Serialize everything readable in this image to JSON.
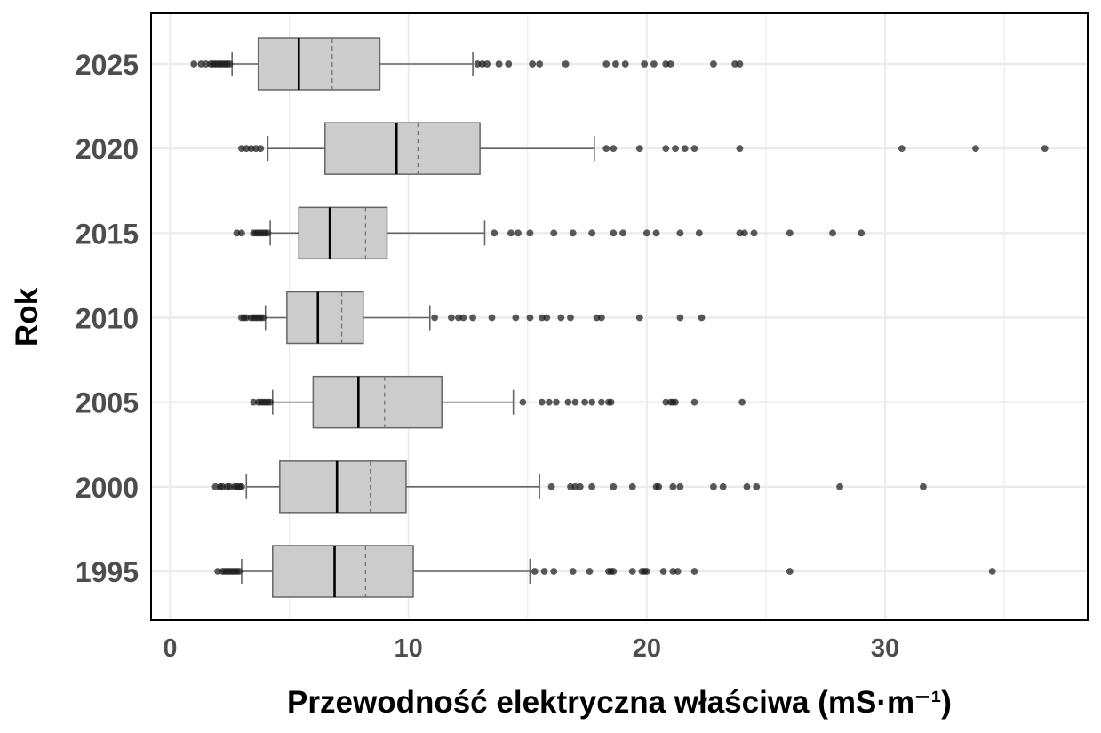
{
  "chart_data": {
    "type": "boxplot",
    "orientation": "horizontal",
    "xlabel": "Przewodność elektryczna właściwa (mS·m⁻¹)",
    "ylabel": "Rok",
    "xlim": [
      -0.8,
      38.5
    ],
    "xticks": [
      0,
      10,
      20,
      30
    ],
    "grid": true,
    "colors": {
      "box_fill": "#cccccc",
      "box_stroke": "#666666",
      "point": "#1a1a1a",
      "grid": "#ebebeb",
      "frame": "#000000"
    },
    "categories": [
      "1995",
      "2000",
      "2005",
      "2010",
      "2015",
      "2020",
      "2025"
    ],
    "series": [
      {
        "category": "1995",
        "whisker_low": 3.0,
        "q1": 4.3,
        "median": 6.9,
        "mean": 8.2,
        "q3": 10.2,
        "whisker_high": 15.1,
        "outliers": [
          2.0,
          2.2,
          2.3,
          2.4,
          2.5,
          2.6,
          2.7,
          2.8,
          2.9,
          15.3,
          15.7,
          16.1,
          16.9,
          17.6,
          18.4,
          18.5,
          18.6,
          19.4,
          19.8,
          19.9,
          20.0,
          20.7,
          21.1,
          21.3,
          22.0,
          26.0,
          34.5
        ]
      },
      {
        "category": "2000",
        "whisker_low": 3.2,
        "q1": 4.6,
        "median": 7.0,
        "mean": 8.4,
        "q3": 9.9,
        "whisker_high": 15.5,
        "outliers": [
          1.9,
          2.1,
          2.2,
          2.4,
          2.5,
          2.7,
          2.8,
          2.9,
          3.0,
          16.0,
          16.8,
          17.0,
          17.2,
          17.7,
          18.6,
          19.4,
          20.4,
          20.5,
          21.1,
          21.4,
          22.8,
          23.2,
          24.2,
          24.6,
          28.1,
          31.6
        ]
      },
      {
        "category": "2005",
        "whisker_low": 4.3,
        "q1": 6.0,
        "median": 7.9,
        "mean": 9.0,
        "q3": 11.4,
        "whisker_high": 14.4,
        "outliers": [
          3.5,
          3.7,
          3.8,
          3.9,
          4.0,
          4.1,
          4.2,
          14.8,
          15.6,
          15.9,
          16.2,
          16.7,
          17.0,
          17.4,
          17.7,
          18.1,
          18.4,
          18.5,
          20.8,
          21.0,
          21.1,
          21.2,
          22.0,
          24.0
        ]
      },
      {
        "category": "2010",
        "whisker_low": 4.0,
        "q1": 4.9,
        "median": 6.2,
        "mean": 7.2,
        "q3": 8.1,
        "whisker_high": 10.9,
        "outliers": [
          3.0,
          3.1,
          3.2,
          3.4,
          3.5,
          3.6,
          3.7,
          3.8,
          3.9,
          11.1,
          11.8,
          12.1,
          12.3,
          12.7,
          13.5,
          14.5,
          15.1,
          15.6,
          15.8,
          16.4,
          16.8,
          17.9,
          18.1,
          19.7,
          21.4,
          22.3
        ]
      },
      {
        "category": "2015",
        "whisker_low": 4.2,
        "q1": 5.4,
        "median": 6.7,
        "mean": 8.2,
        "q3": 9.1,
        "whisker_high": 13.2,
        "outliers": [
          2.8,
          3.0,
          3.5,
          3.6,
          3.7,
          3.8,
          3.9,
          4.0,
          4.1,
          13.6,
          14.3,
          14.6,
          15.1,
          16.1,
          16.9,
          17.7,
          18.6,
          19.0,
          20.0,
          20.4,
          21.4,
          22.2,
          23.9,
          24.1,
          24.5,
          26.0,
          27.8,
          29.0
        ]
      },
      {
        "category": "2020",
        "whisker_low": 4.1,
        "q1": 6.5,
        "median": 9.5,
        "mean": 10.4,
        "q3": 13.0,
        "whisker_high": 17.8,
        "outliers": [
          3.0,
          3.2,
          3.4,
          3.6,
          3.8,
          18.3,
          18.6,
          19.7,
          20.8,
          21.2,
          21.6,
          22.0,
          23.9,
          30.7,
          33.8,
          36.7
        ]
      },
      {
        "category": "2025",
        "whisker_low": 2.6,
        "q1": 3.7,
        "median": 5.4,
        "mean": 6.8,
        "q3": 8.8,
        "whisker_high": 12.7,
        "outliers": [
          1.0,
          1.3,
          1.5,
          1.7,
          1.8,
          1.9,
          2.0,
          2.1,
          2.2,
          2.3,
          2.4,
          2.5,
          12.9,
          13.1,
          13.3,
          13.8,
          14.2,
          15.2,
          15.5,
          16.6,
          18.3,
          18.7,
          19.1,
          19.9,
          20.3,
          20.8,
          21.0,
          22.8,
          23.7,
          23.9
        ]
      }
    ]
  }
}
